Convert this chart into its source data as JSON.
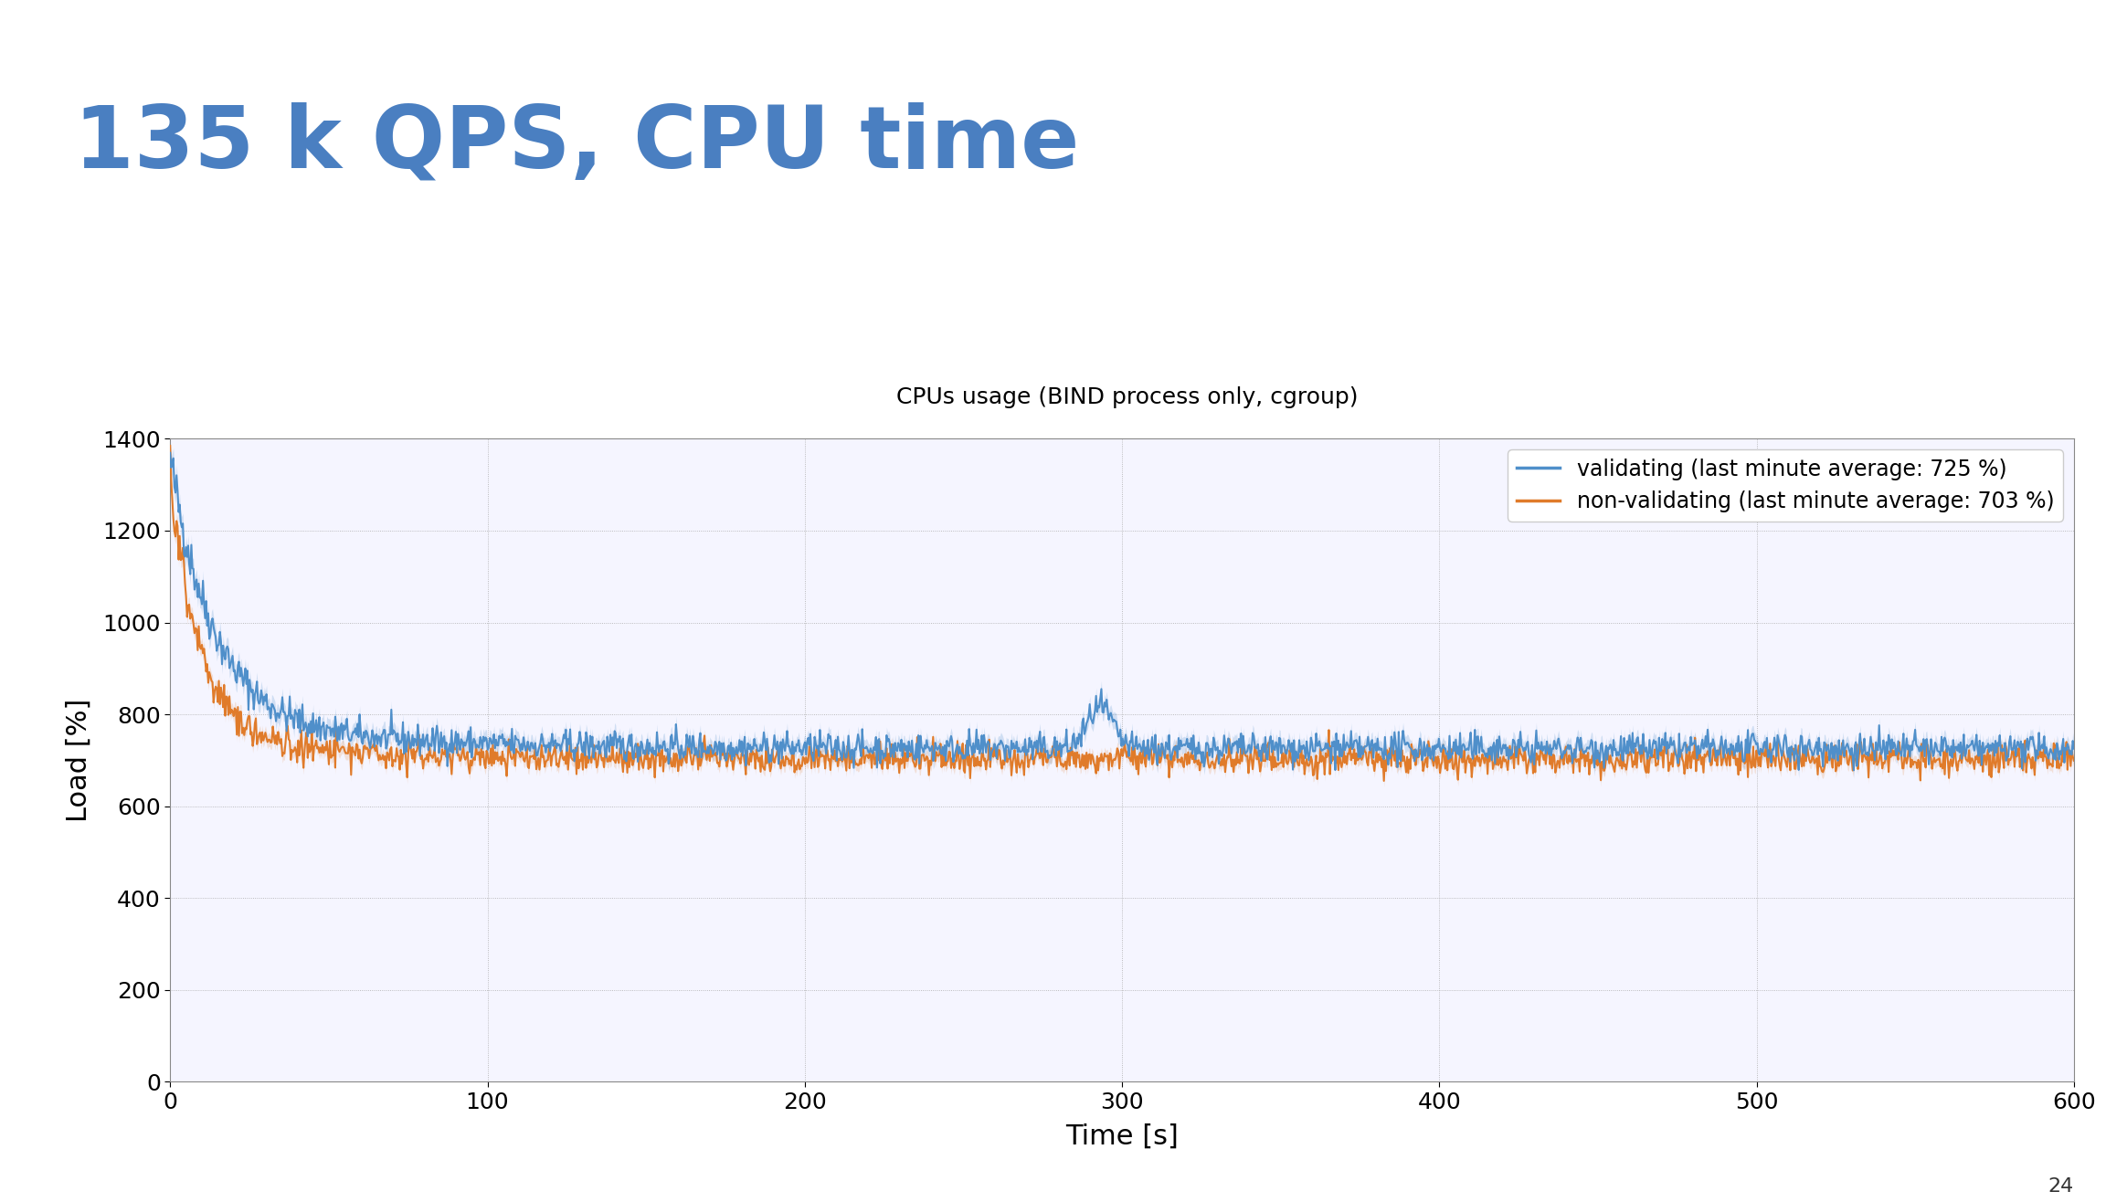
{
  "title_main": "135 k QPS, CPU time",
  "title_sub": "CPUs usage (BIND process only, cgroup)",
  "xlabel": "Time [s]",
  "ylabel": "Load [%]",
  "xlim": [
    0,
    600
  ],
  "ylim": [
    0,
    1400
  ],
  "yticks": [
    0,
    200,
    400,
    600,
    800,
    1000,
    1200,
    1400
  ],
  "xticks": [
    0,
    100,
    200,
    300,
    400,
    500,
    600
  ],
  "validating_color": "#4f8fca",
  "nonvalidating_color": "#e07b2a",
  "validating_label": "validating (last minute average: 725 %)",
  "nonvalidating_label": "non-validating (last minute average: 703 %)",
  "background_color": "#ffffff",
  "grid_color": "#aaaaaa",
  "title_main_color": "#4a7fc1",
  "title_sub_color": "#000000",
  "header_bar_color": "#4a7fc1",
  "slide_number": "24",
  "validating_fill_alpha": 0.22,
  "nonvalidating_fill_alpha": 0.18,
  "validating_steady": 725,
  "nonvalidating_steady": 703,
  "peak_validating": 1355,
  "peak_nonvalidating": 1330
}
